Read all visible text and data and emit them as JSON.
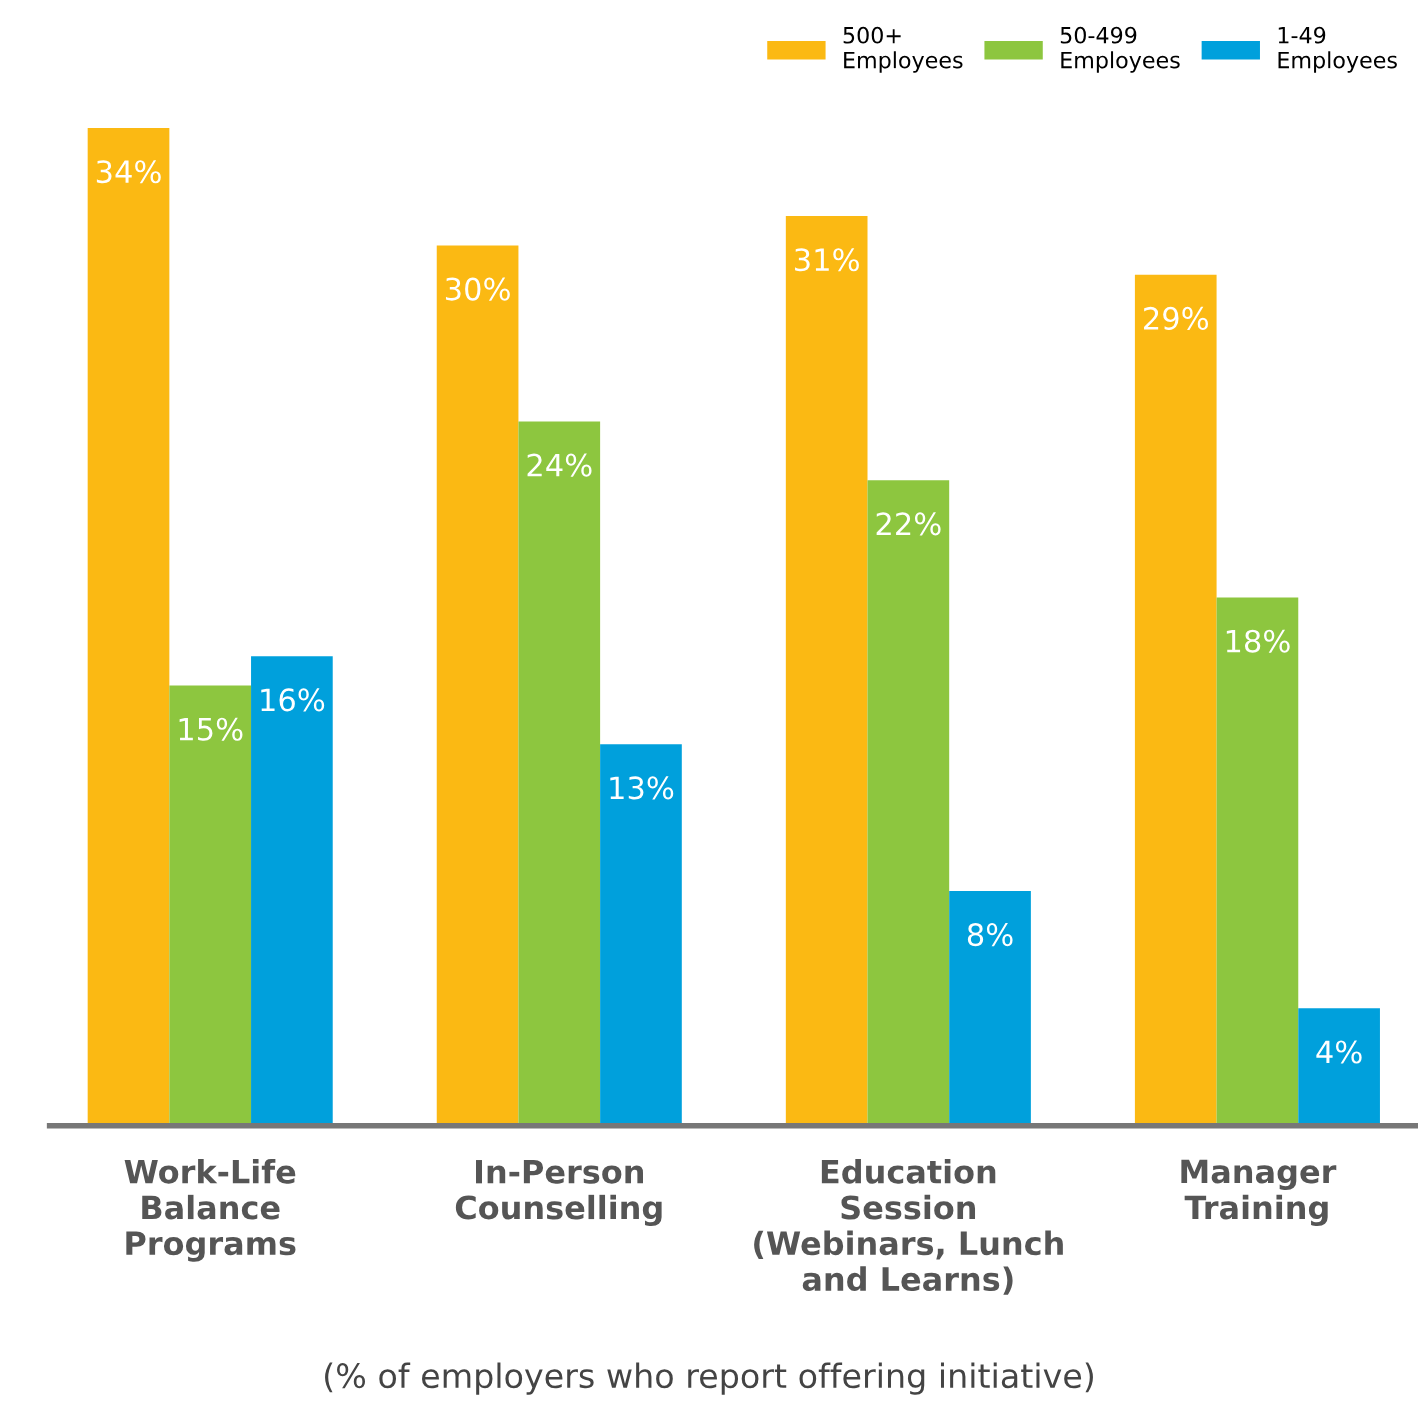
{
  "chart_data": {
    "type": "bar",
    "categories": [
      "Work-Life\nBalance\nPrograms",
      "In-Person\nCounselling",
      "Education\nSession\n(Webinars, Lunch\nand Learns)",
      "Manager\nTraining"
    ],
    "series": [
      {
        "name": "500+\nEmployees",
        "color": "#fbb913",
        "values": [
          34,
          30,
          31,
          29
        ],
        "value_labels": [
          "34%",
          "30%",
          "31%",
          "29%"
        ]
      },
      {
        "name": "50-499\nEmployees",
        "color": "#8dc63f",
        "values": [
          15,
          24,
          22,
          18
        ],
        "value_labels": [
          "15%",
          "24%",
          "22%",
          "18%"
        ]
      },
      {
        "name": "1-49\nEmployees",
        "color": "#00a0dc",
        "values": [
          16,
          13,
          8,
          4
        ],
        "value_labels": [
          "16%",
          "13%",
          "8%",
          "4%"
        ]
      }
    ],
    "annotations": [
      "(% of employers who report offering initiative)"
    ],
    "tick_labels": "x",
    "grid": false,
    "legend": "top right"
  }
}
